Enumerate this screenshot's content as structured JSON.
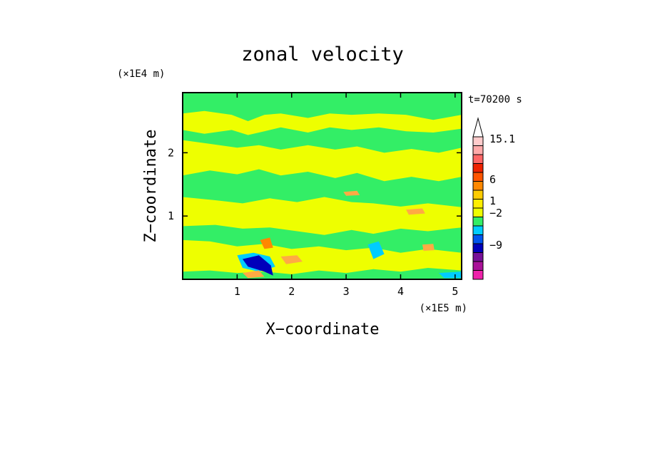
{
  "chart_data": {
    "type": "heatmap",
    "title": "zonal velocity",
    "xlabel": "X−coordinate",
    "ylabel": "Z−coordinate",
    "x_scale_label": "(×1E5 m)",
    "y_scale_label": "(×1E4 m)",
    "time_label": "t=70200 s",
    "xlim": [
      0,
      5.12
    ],
    "ylim": [
      0,
      2.95
    ],
    "x_ticks": [
      {
        "value": 1,
        "label": "1"
      },
      {
        "value": 2,
        "label": "2"
      },
      {
        "value": 3,
        "label": "3"
      },
      {
        "value": 4,
        "label": "4"
      },
      {
        "value": 5,
        "label": "5"
      }
    ],
    "y_ticks": [
      {
        "value": 1,
        "label": "1"
      },
      {
        "value": 2,
        "label": "2"
      }
    ],
    "colorbar": {
      "levels": [
        {
          "color": "#ee22aa"
        },
        {
          "color": "#aa1199"
        },
        {
          "color": "#771199"
        },
        {
          "color": "#0000bb"
        },
        {
          "color": "#0055ee"
        },
        {
          "color": "#00ccff"
        },
        {
          "color": "#33ee66"
        },
        {
          "color": "#eeff00"
        },
        {
          "color": "#ffee00"
        },
        {
          "color": "#ffcc00"
        },
        {
          "color": "#ff8800"
        },
        {
          "color": "#ff5500"
        },
        {
          "color": "#ee2200"
        },
        {
          "color": "#ff6666"
        },
        {
          "color": "#ffaaaa"
        },
        {
          "color": "#ffcccc"
        }
      ],
      "labels": [
        "15.1",
        "6",
        "1",
        "−2",
        "−9"
      ],
      "extend": "max"
    },
    "background_colors": {
      "green": "#33ee66",
      "yellow": "#eeff00",
      "cyan": "#00ccff",
      "blue": "#0000bb",
      "orange": "#ff8800",
      "light_orange": "#ffaa44"
    },
    "regions": [
      {
        "color": "#eeff00",
        "points": [
          [
            0,
            2.62
          ],
          [
            0.4,
            2.66
          ],
          [
            0.9,
            2.6
          ],
          [
            1.2,
            2.5
          ],
          [
            1.5,
            2.6
          ],
          [
            1.8,
            2.62
          ],
          [
            2.3,
            2.55
          ],
          [
            2.7,
            2.62
          ],
          [
            3.1,
            2.6
          ],
          [
            3.6,
            2.62
          ],
          [
            4.1,
            2.6
          ],
          [
            4.6,
            2.52
          ],
          [
            5.12,
            2.6
          ],
          [
            5.12,
            2.38
          ],
          [
            4.6,
            2.32
          ],
          [
            4.1,
            2.34
          ],
          [
            3.6,
            2.4
          ],
          [
            3.1,
            2.36
          ],
          [
            2.7,
            2.4
          ],
          [
            2.3,
            2.32
          ],
          [
            1.8,
            2.4
          ],
          [
            1.5,
            2.34
          ],
          [
            1.2,
            2.28
          ],
          [
            0.9,
            2.36
          ],
          [
            0.4,
            2.3
          ],
          [
            0,
            2.36
          ]
        ]
      },
      {
        "color": "#eeff00",
        "points": [
          [
            0,
            2.2
          ],
          [
            0.5,
            2.14
          ],
          [
            1.0,
            2.08
          ],
          [
            1.4,
            2.12
          ],
          [
            1.8,
            2.05
          ],
          [
            2.3,
            2.12
          ],
          [
            2.8,
            2.05
          ],
          [
            3.2,
            2.1
          ],
          [
            3.7,
            2.0
          ],
          [
            4.2,
            2.06
          ],
          [
            4.7,
            2.0
          ],
          [
            5.12,
            2.08
          ],
          [
            5.12,
            1.62
          ],
          [
            4.7,
            1.55
          ],
          [
            4.2,
            1.62
          ],
          [
            3.7,
            1.55
          ],
          [
            3.2,
            1.68
          ],
          [
            2.8,
            1.6
          ],
          [
            2.3,
            1.7
          ],
          [
            1.8,
            1.64
          ],
          [
            1.4,
            1.74
          ],
          [
            1.0,
            1.66
          ],
          [
            0.5,
            1.72
          ],
          [
            0,
            1.64
          ]
        ]
      },
      {
        "color": "#eeff00",
        "points": [
          [
            0,
            1.3
          ],
          [
            0.6,
            1.25
          ],
          [
            1.1,
            1.2
          ],
          [
            1.6,
            1.28
          ],
          [
            2.1,
            1.22
          ],
          [
            2.6,
            1.3
          ],
          [
            3.1,
            1.22
          ],
          [
            3.5,
            1.2
          ],
          [
            4.0,
            1.15
          ],
          [
            4.5,
            1.2
          ],
          [
            5.12,
            1.14
          ],
          [
            5.12,
            0.82
          ],
          [
            4.5,
            0.76
          ],
          [
            4.0,
            0.8
          ],
          [
            3.5,
            0.72
          ],
          [
            3.1,
            0.78
          ],
          [
            2.6,
            0.7
          ],
          [
            2.1,
            0.76
          ],
          [
            1.6,
            0.82
          ],
          [
            1.1,
            0.8
          ],
          [
            0.6,
            0.86
          ],
          [
            0,
            0.84
          ]
        ]
      },
      {
        "color": "#eeff00",
        "points": [
          [
            0,
            0.62
          ],
          [
            0.5,
            0.6
          ],
          [
            1.0,
            0.52
          ],
          [
            1.5,
            0.56
          ],
          [
            2.0,
            0.48
          ],
          [
            2.5,
            0.52
          ],
          [
            3.0,
            0.46
          ],
          [
            3.5,
            0.5
          ],
          [
            4.0,
            0.42
          ],
          [
            4.5,
            0.48
          ],
          [
            5.12,
            0.42
          ],
          [
            5.12,
            0.14
          ],
          [
            4.5,
            0.18
          ],
          [
            4.0,
            0.12
          ],
          [
            3.5,
            0.16
          ],
          [
            3.0,
            0.1
          ],
          [
            2.5,
            0.14
          ],
          [
            2.0,
            0.08
          ],
          [
            1.5,
            0.12
          ],
          [
            1.0,
            0.1
          ],
          [
            0.5,
            0.14
          ],
          [
            0,
            0.12
          ]
        ]
      },
      {
        "color": "#00ccff",
        "points": [
          [
            1.0,
            0.38
          ],
          [
            1.3,
            0.42
          ],
          [
            1.6,
            0.36
          ],
          [
            1.7,
            0.2
          ],
          [
            1.4,
            0.12
          ],
          [
            1.1,
            0.18
          ]
        ]
      },
      {
        "color": "#00ccff",
        "points": [
          [
            3.4,
            0.55
          ],
          [
            3.6,
            0.6
          ],
          [
            3.7,
            0.4
          ],
          [
            3.5,
            0.32
          ]
        ]
      },
      {
        "color": "#00ccff",
        "points": [
          [
            4.7,
            0.1
          ],
          [
            5.12,
            0.12
          ],
          [
            5.12,
            0.02
          ],
          [
            4.8,
            0.02
          ]
        ]
      },
      {
        "color": "#0000bb",
        "points": [
          [
            1.1,
            0.32
          ],
          [
            1.4,
            0.38
          ],
          [
            1.62,
            0.22
          ],
          [
            1.66,
            0.06
          ],
          [
            1.5,
            0.12
          ],
          [
            1.2,
            0.2
          ]
        ]
      },
      {
        "color": "#ff8800",
        "points": [
          [
            1.42,
            0.62
          ],
          [
            1.6,
            0.66
          ],
          [
            1.66,
            0.5
          ],
          [
            1.5,
            0.48
          ]
        ]
      },
      {
        "color": "#ffaa44",
        "points": [
          [
            1.1,
            0.1
          ],
          [
            1.4,
            0.14
          ],
          [
            1.5,
            0.04
          ],
          [
            1.2,
            0.02
          ]
        ]
      },
      {
        "color": "#ffaa44",
        "points": [
          [
            1.8,
            0.36
          ],
          [
            2.1,
            0.38
          ],
          [
            2.2,
            0.28
          ],
          [
            1.9,
            0.24
          ]
        ]
      },
      {
        "color": "#ffaa44",
        "points": [
          [
            2.95,
            1.38
          ],
          [
            3.2,
            1.4
          ],
          [
            3.25,
            1.33
          ],
          [
            3.0,
            1.32
          ]
        ]
      },
      {
        "color": "#ffaa44",
        "points": [
          [
            4.1,
            1.1
          ],
          [
            4.4,
            1.12
          ],
          [
            4.45,
            1.04
          ],
          [
            4.15,
            1.02
          ]
        ]
      },
      {
        "color": "#ffaa44",
        "points": [
          [
            4.4,
            0.55
          ],
          [
            4.6,
            0.56
          ],
          [
            4.62,
            0.46
          ],
          [
            4.42,
            0.45
          ]
        ]
      }
    ]
  }
}
